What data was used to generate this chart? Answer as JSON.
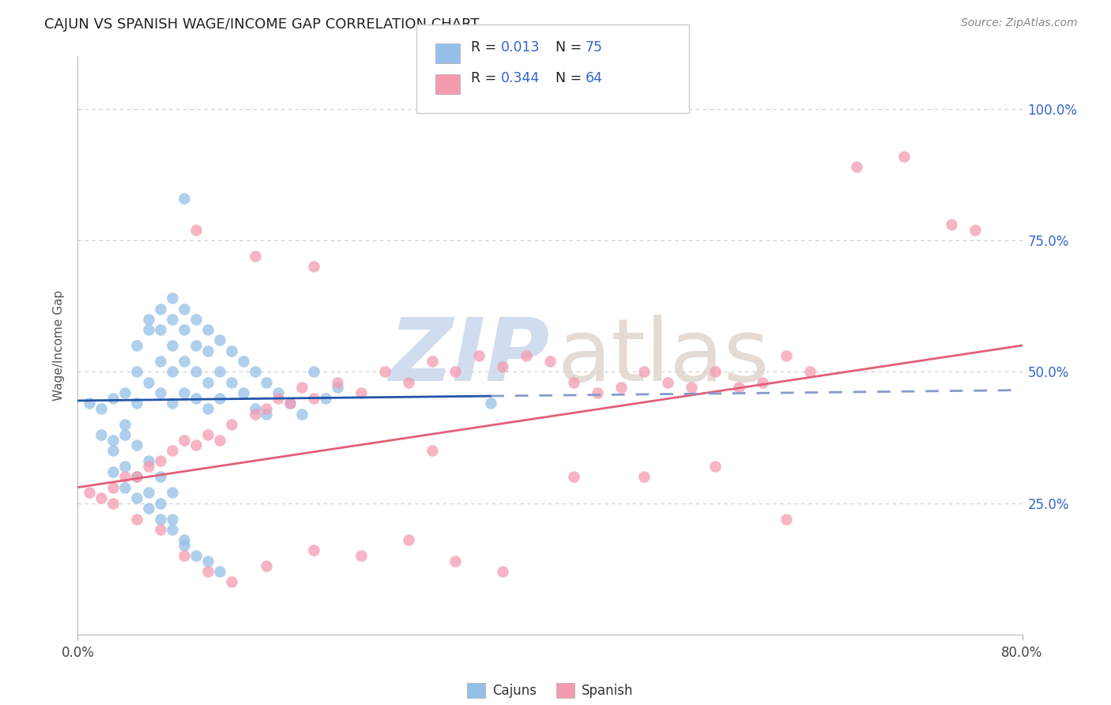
{
  "title": "CAJUN VS SPANISH WAGE/INCOME GAP CORRELATION CHART",
  "source": "Source: ZipAtlas.com",
  "ylabel": "Wage/Income Gap",
  "legend_cajun_r": "0.013",
  "legend_cajun_n": "75",
  "legend_spanish_r": "0.344",
  "legend_spanish_n": "64",
  "cajun_color": "#94bfe8",
  "spanish_color": "#f49bb0",
  "cajun_line_color": "#2255aa",
  "cajun_line_dash_color": "#8899cc",
  "spanish_line_color": "#e0607a",
  "background_color": "#ffffff",
  "grid_color": "#cccccc",
  "ytick_values": [
    25,
    50,
    75,
    100
  ],
  "xlim": [
    0,
    80
  ],
  "ylim": [
    0,
    110
  ],
  "cajun_x": [
    1,
    2,
    3,
    3,
    4,
    4,
    5,
    5,
    5,
    6,
    6,
    6,
    7,
    7,
    7,
    7,
    8,
    8,
    8,
    8,
    8,
    9,
    9,
    9,
    9,
    10,
    10,
    10,
    10,
    11,
    11,
    11,
    11,
    12,
    12,
    12,
    13,
    13,
    14,
    14,
    15,
    15,
    16,
    16,
    17,
    18,
    19,
    20,
    21,
    22,
    3,
    4,
    5,
    6,
    7,
    8,
    9,
    10,
    11,
    12,
    2,
    3,
    4,
    5,
    6,
    7,
    8,
    9,
    35,
    9,
    4,
    5,
    6,
    7,
    8
  ],
  "cajun_y": [
    44,
    43,
    45,
    37,
    46,
    38,
    55,
    50,
    44,
    60,
    58,
    48,
    62,
    58,
    52,
    46,
    64,
    60,
    55,
    50,
    44,
    62,
    58,
    52,
    46,
    60,
    55,
    50,
    45,
    58,
    54,
    48,
    43,
    56,
    50,
    45,
    54,
    48,
    52,
    46,
    50,
    43,
    48,
    42,
    46,
    44,
    42,
    50,
    45,
    47,
    31,
    28,
    26,
    24,
    22,
    20,
    18,
    15,
    14,
    12,
    38,
    35,
    32,
    30,
    27,
    25,
    22,
    17,
    44,
    83,
    40,
    36,
    33,
    30,
    27
  ],
  "spanish_x": [
    1,
    2,
    3,
    4,
    5,
    6,
    7,
    8,
    9,
    10,
    11,
    12,
    13,
    15,
    16,
    17,
    18,
    19,
    20,
    22,
    24,
    26,
    28,
    30,
    32,
    34,
    36,
    38,
    40,
    42,
    44,
    46,
    48,
    50,
    52,
    54,
    56,
    58,
    60,
    62,
    3,
    5,
    7,
    9,
    11,
    13,
    16,
    20,
    24,
    28,
    32,
    36,
    42,
    48,
    54,
    60,
    66,
    70,
    74,
    76,
    10,
    15,
    20,
    30
  ],
  "spanish_y": [
    27,
    26,
    28,
    30,
    30,
    32,
    33,
    35,
    37,
    36,
    38,
    37,
    40,
    42,
    43,
    45,
    44,
    47,
    45,
    48,
    46,
    50,
    48,
    52,
    50,
    53,
    51,
    53,
    52,
    48,
    46,
    47,
    50,
    48,
    47,
    50,
    47,
    48,
    53,
    50,
    25,
    22,
    20,
    15,
    12,
    10,
    13,
    16,
    15,
    18,
    14,
    12,
    30,
    30,
    32,
    22,
    89,
    91,
    78,
    77,
    77,
    72,
    70,
    35
  ],
  "cajun_line_x0": 0,
  "cajun_line_x1": 80,
  "cajun_line_y0": 44.5,
  "cajun_line_y1": 46.5,
  "cajun_solid_end": 35,
  "spanish_line_x0": 0,
  "spanish_line_x1": 80,
  "spanish_line_y0": 28,
  "spanish_line_y1": 55,
  "watermark_zip_color": "#c8d8ec",
  "watermark_atlas_color": "#ddd0c8"
}
